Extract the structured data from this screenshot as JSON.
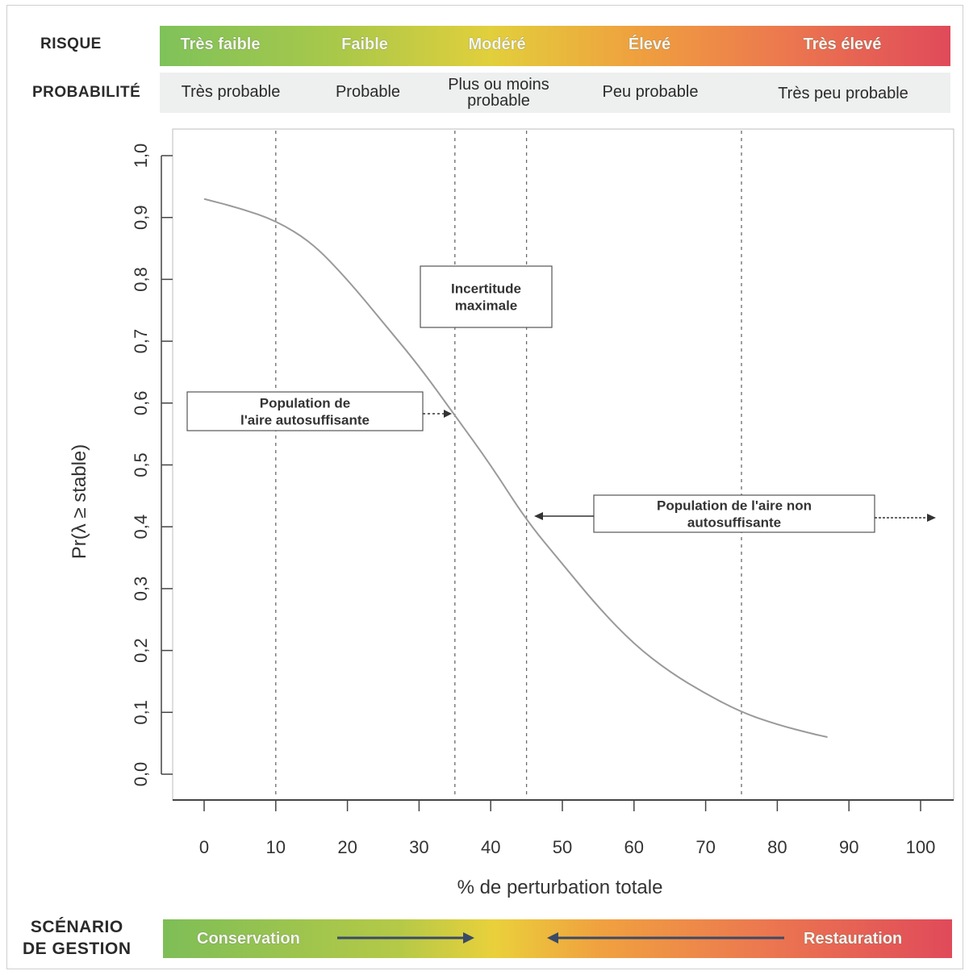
{
  "risk": {
    "label": "RISQUE",
    "levels": [
      "Très faible",
      "Faible",
      "Modéré",
      "Élevé",
      "Très élevé"
    ]
  },
  "probability": {
    "label": "PROBABILITÉ",
    "levels": [
      "Très probable",
      "Probable",
      "Plus ou moins probable",
      "Peu probable",
      "Très peu probable"
    ]
  },
  "scenario": {
    "label_line1": "SCÉNARIO",
    "label_line2": "DE GESTION",
    "left": "Conservation",
    "right": "Restauration"
  },
  "colors": {
    "curve": "#9a9a9a",
    "axis": "#444444",
    "gridline": "#6a6a6a"
  },
  "chart_data": {
    "type": "line",
    "xlabel": "% de perturbation totale",
    "ylabel": "Pr(λ ≥ stable)",
    "xlim": [
      0,
      100
    ],
    "ylim": [
      0,
      1
    ],
    "x_ticks": [
      "0",
      "10",
      "20",
      "30",
      "40",
      "50",
      "60",
      "70",
      "80",
      "90",
      "100"
    ],
    "y_ticks": [
      "0,0",
      "0,1",
      "0,2",
      "0,3",
      "0,4",
      "0,5",
      "0,6",
      "0,7",
      "0,8",
      "0,9",
      "1,0"
    ],
    "grid": false,
    "reference_lines_x": [
      10,
      35,
      45,
      75
    ],
    "series": [
      {
        "x": [
          0,
          5,
          10,
          15,
          20,
          25,
          30,
          35,
          40,
          45,
          50,
          55,
          60,
          65,
          70,
          75,
          80,
          85,
          87
        ],
        "y": [
          0.93,
          0.915,
          0.895,
          0.86,
          0.8,
          0.73,
          0.66,
          0.58,
          0.5,
          0.41,
          0.34,
          0.27,
          0.21,
          0.165,
          0.13,
          0.1,
          0.08,
          0.065,
          0.06
        ]
      }
    ],
    "annotations": {
      "max_uncertainty": [
        "Incertitude",
        "maximale"
      ],
      "self_sustaining": [
        "Population de",
        "l'aire autosuffisante"
      ],
      "not_self_sustaining": [
        "Population de l'aire non",
        "autosuffisante"
      ]
    }
  }
}
